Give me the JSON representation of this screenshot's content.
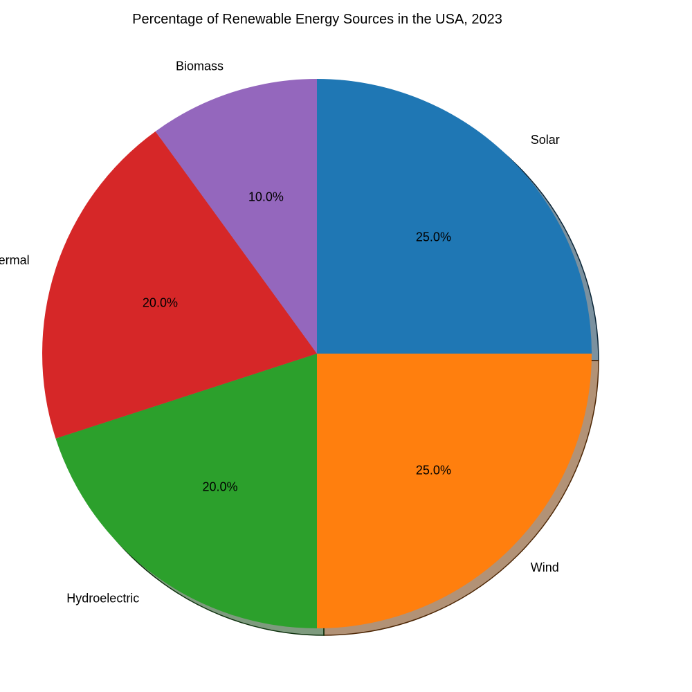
{
  "chart_data": {
    "type": "pie",
    "title": "Percentage of Renewable Energy Sources in the USA, 2023",
    "categories": [
      "Solar",
      "Wind",
      "Hydroelectric",
      "Geothermal",
      "Biomass"
    ],
    "values": [
      25.0,
      25.0,
      20.0,
      20.0,
      10.0
    ],
    "percent_labels": [
      "25.0%",
      "25.0%",
      "20.0%",
      "20.0%",
      "10.0%"
    ],
    "colors": [
      "#1f77b4",
      "#ff7f0e",
      "#2ca02c",
      "#d62728",
      "#9467bd"
    ],
    "start_angle_deg": 90,
    "direction": "clockwise",
    "shadow": true,
    "legend": "none"
  }
}
